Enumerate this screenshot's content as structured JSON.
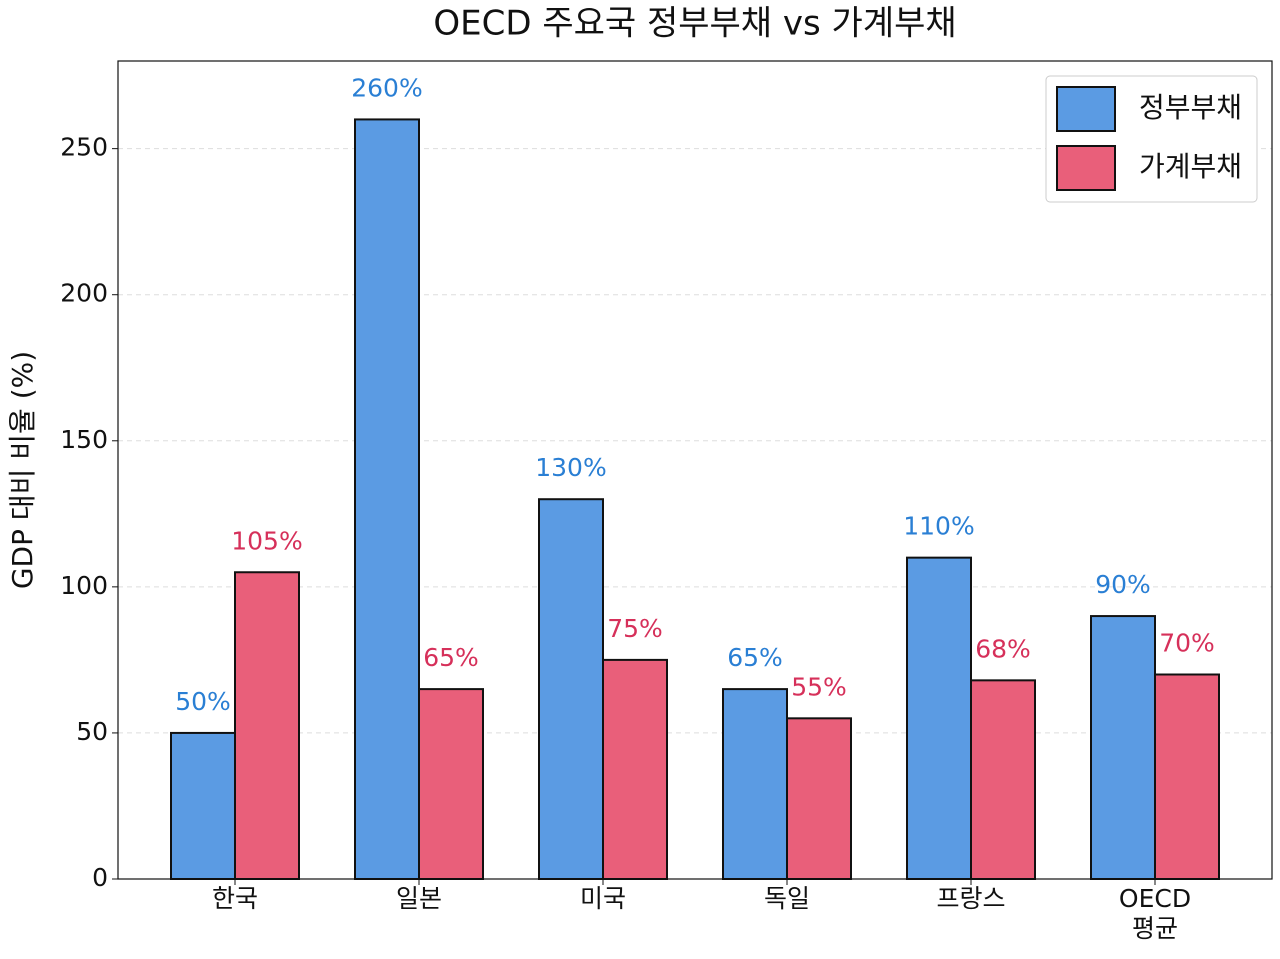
{
  "chart_data": {
    "type": "bar",
    "title": "OECD 주요국 정부부채 vs 가계부채",
    "ylabel": "GDP 대비 비율 (%)",
    "categories": [
      "한국",
      "일본",
      "미국",
      "독일",
      "프랑스",
      "OECD\n평균"
    ],
    "series": [
      {
        "name": "정부부채",
        "color": "#5b9be3",
        "label_color": "#2a7fd4",
        "values": [
          50,
          260,
          130,
          65,
          110,
          90
        ],
        "value_labels": [
          "50%",
          "260%",
          "130%",
          "65%",
          "110%",
          "90%"
        ]
      },
      {
        "name": "가계부채",
        "color": "#e95f7a",
        "label_color": "#d6305a",
        "values": [
          105,
          65,
          75,
          55,
          68,
          70
        ],
        "value_labels": [
          "105%",
          "65%",
          "75%",
          "55%",
          "68%",
          "70%"
        ]
      }
    ],
    "ylim": [
      0,
      280
    ],
    "yticks": [
      0,
      50,
      100,
      150,
      200,
      250
    ],
    "grid": true,
    "legend": "upper right"
  }
}
